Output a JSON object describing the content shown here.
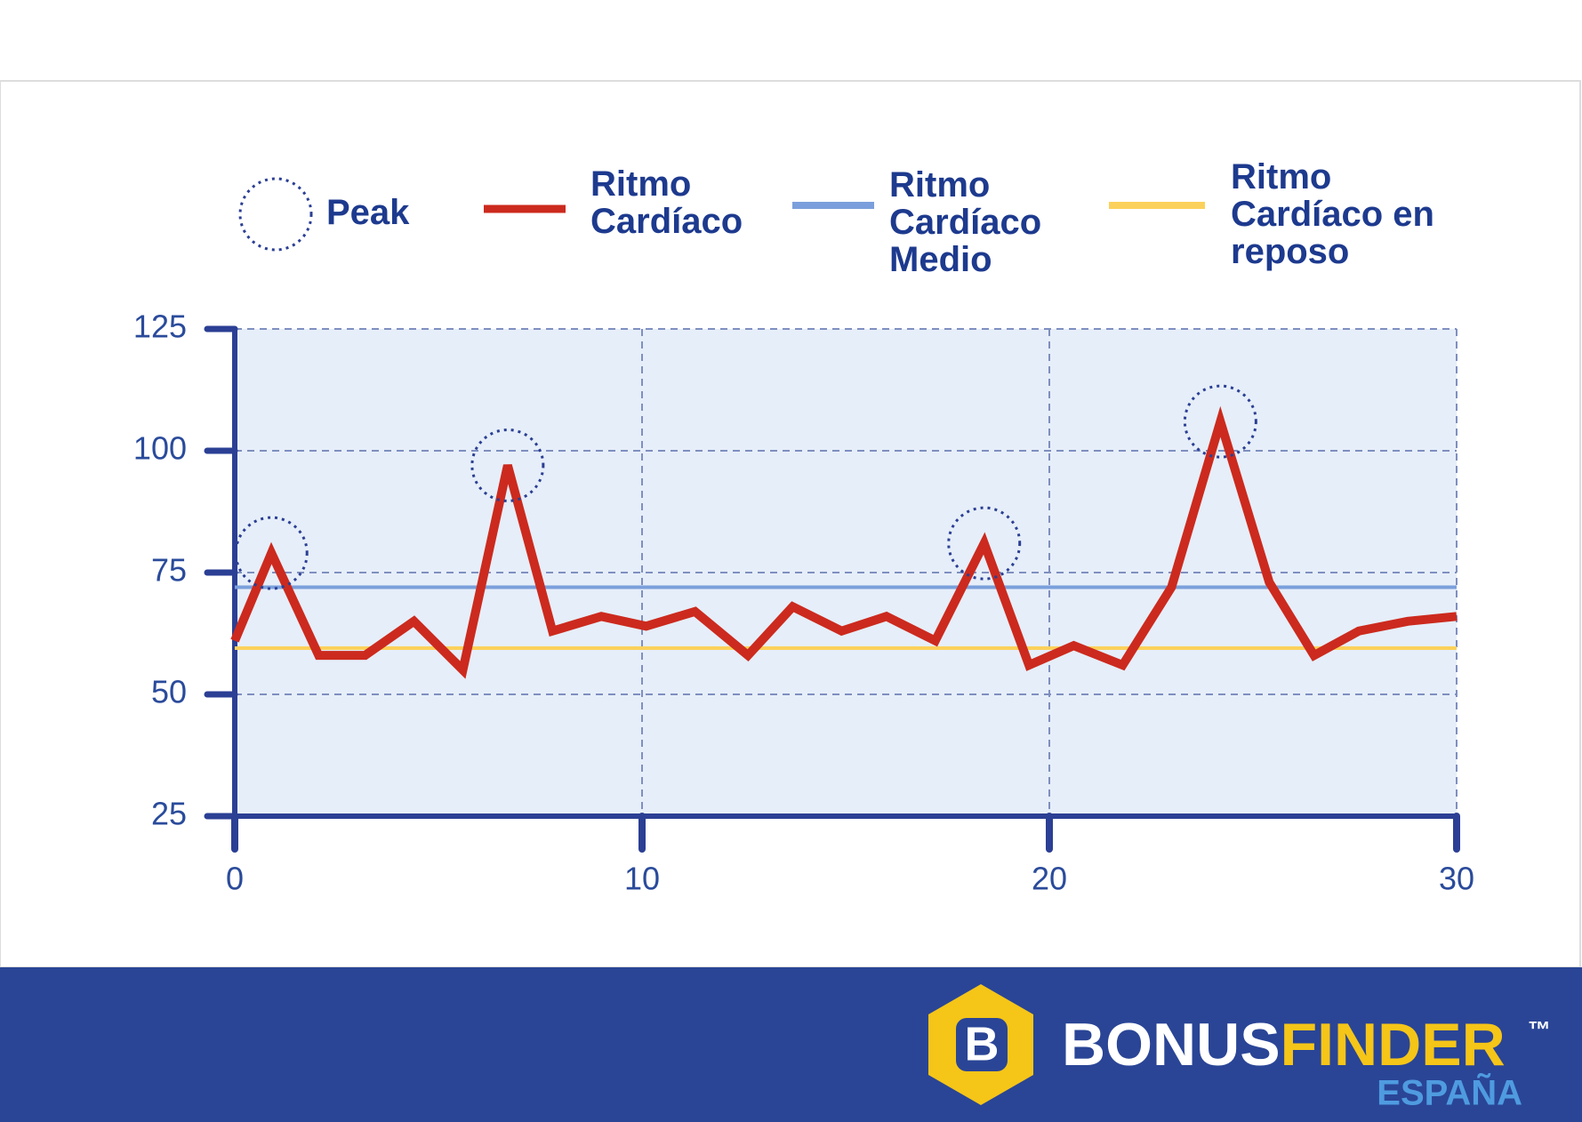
{
  "chart_data": {
    "type": "line",
    "xlim": [
      0,
      30
    ],
    "xticks": [
      0,
      10,
      20,
      30
    ],
    "ylim": [
      25,
      125
    ],
    "yticks": [
      25,
      50,
      75,
      100,
      125
    ],
    "grid": true,
    "series": [
      {
        "name": "Peak",
        "kind": "marker",
        "color": "#2b3f94",
        "x": [
          0.9,
          6.7,
          18.4,
          24.2
        ],
        "values": [
          79,
          97,
          81,
          106
        ]
      },
      {
        "name": "Ritmo Cardíaco",
        "color": "#cc2a1e",
        "x": [
          0,
          0.9,
          2.06,
          3.2,
          4.4,
          5.6,
          6.7,
          7.8,
          9.0,
          10.1,
          11.3,
          12.6,
          13.7,
          14.9,
          16.0,
          17.2,
          18.4,
          19.5,
          20.6,
          21.8,
          23.0,
          24.2,
          25.4,
          26.5,
          27.6,
          28.8,
          30
        ],
        "values": [
          61,
          79,
          58,
          58,
          65,
          55,
          97,
          63,
          66,
          64,
          67,
          58,
          68,
          63,
          66,
          61,
          81,
          56,
          60,
          56,
          72,
          106,
          73,
          58,
          63,
          65,
          66
        ]
      },
      {
        "name": "Ritmo Cardíaco Medio",
        "color": "#7b9fdc",
        "x": [
          0,
          30
        ],
        "values": [
          72,
          72
        ]
      },
      {
        "name": "Ritmo Cardíaco en reposo",
        "color": "#fbd15b",
        "x": [
          0,
          30
        ],
        "values": [
          59.5,
          59.5
        ]
      }
    ]
  },
  "footer": {
    "logo_letter": "B",
    "brand_1": "BONUS",
    "brand_2": "FINDER",
    "trademark": "™",
    "region": "ESPAÑA"
  }
}
